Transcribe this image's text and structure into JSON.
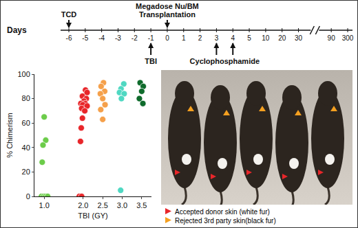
{
  "timeline": {
    "axis_label": "Days",
    "days": [
      "-6",
      "-5",
      "-4",
      "-3",
      "-2",
      "-1",
      "0",
      "1",
      "2",
      "3",
      "4",
      "5",
      "10",
      "20",
      "30",
      "90",
      "300"
    ],
    "break_after": "30",
    "events": [
      {
        "lines": [
          "TCD"
        ],
        "days": [
          "-6"
        ],
        "side": "above"
      },
      {
        "lines": [
          "Megadose Nu/BM",
          "Transplantation"
        ],
        "days": [
          "0"
        ],
        "side": "above"
      },
      {
        "lines": [
          "TBI"
        ],
        "days": [
          "-1"
        ],
        "side": "below"
      },
      {
        "lines": [
          "Cyclophosphamide"
        ],
        "days": [
          "3",
          "4"
        ],
        "side": "below"
      }
    ]
  },
  "chart_data": {
    "type": "scatter",
    "marker": "circle",
    "x_label": "TBI (GY)",
    "y_label": "% Chimerism",
    "xlim": [
      0.75,
      3.75
    ],
    "xticks": [
      {
        "value": 1.0,
        "label": "1.0"
      },
      {
        "value": 2.0,
        "label": "2.0"
      },
      {
        "value": 2.5,
        "label": "2.5"
      },
      {
        "value": 3.0,
        "label": "3.0"
      },
      {
        "value": 3.5,
        "label": "3.5"
      }
    ],
    "ylim": [
      0,
      100
    ],
    "yticks": [
      0,
      20,
      40,
      60,
      80,
      100
    ],
    "grid": false,
    "series": [
      {
        "color": "#6ccc4a",
        "x": [
          1.0,
          1.04,
          0.97,
          0.95,
          0.93,
          0.99,
          1.04,
          1.09
        ],
        "values": [
          65,
          46,
          42,
          28,
          0,
          0,
          0,
          0
        ]
      },
      {
        "color": "#e8262a",
        "x": [
          2.06,
          2.1,
          1.98,
          2.08,
          2.02,
          1.94,
          2.05,
          1.99,
          2.1,
          1.96,
          2.04,
          1.98,
          1.95,
          1.93,
          1.9,
          1.96
        ],
        "values": [
          87,
          85,
          82,
          80,
          78,
          76,
          76,
          75,
          74,
          72,
          70,
          64,
          56,
          45,
          0,
          0
        ]
      },
      {
        "color": "#f5a04a",
        "x": [
          2.52,
          2.46,
          2.55,
          2.44,
          2.5,
          2.56,
          2.45,
          2.5
        ],
        "values": [
          93,
          90,
          86,
          84,
          80,
          75,
          71,
          63
        ]
      },
      {
        "color": "#4fd8c2",
        "x": [
          3.04,
          2.97,
          2.93,
          3.05,
          2.98,
          2.96
        ],
        "values": [
          92,
          88,
          85,
          84,
          80,
          5
        ]
      },
      {
        "color": "#0f6b2c",
        "x": [
          3.46,
          3.54,
          3.5,
          3.44,
          3.53
        ],
        "values": [
          93,
          90,
          86,
          80,
          76
        ]
      }
    ],
    "legend": "none"
  },
  "photo": {
    "legend": [
      {
        "text": "Accepted donor skin (white fur)",
        "color": "#e8262a"
      },
      {
        "text": "Rejected 3rd party skin(black fur)",
        "color": "#f5a020"
      }
    ]
  }
}
